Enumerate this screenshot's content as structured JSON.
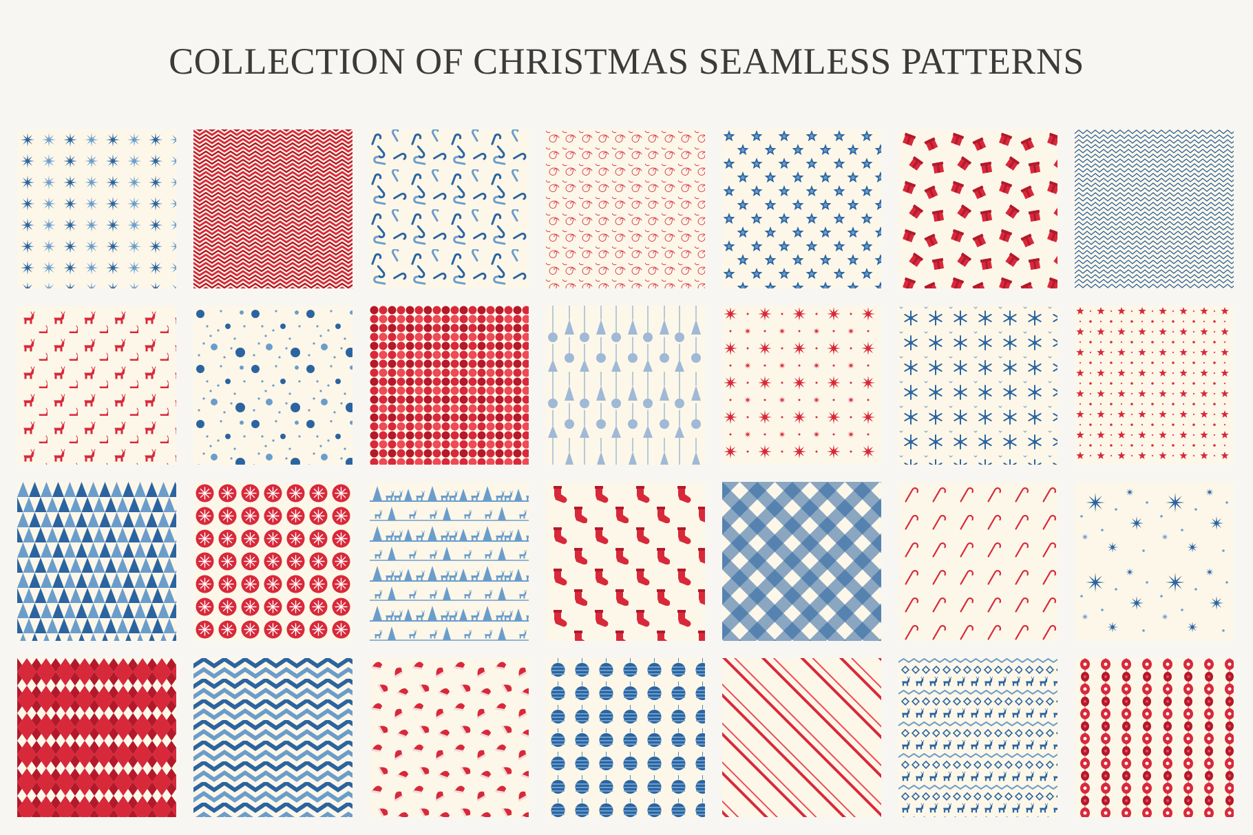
{
  "title": "COLLECTION OF CHRISTMAS SEAMLESS PATTERNS",
  "colors": {
    "background": "#f7f6f2",
    "cream": "#fdf7e9",
    "blue": "#2b64a0",
    "light_blue": "#6b9dcb",
    "red": "#d8293b",
    "dark_red": "#b3192b",
    "light_red": "#ee4a57"
  },
  "tiles": [
    {
      "pattern": "blue-eight-point-stars-pattern"
    },
    {
      "pattern": "red-herringbone-pattern"
    },
    {
      "pattern": "blue-candy-canes-pattern"
    },
    {
      "pattern": "red-swirls-pattern"
    },
    {
      "pattern": "blue-five-point-stars-pattern"
    },
    {
      "pattern": "red-gift-boxes-pattern"
    },
    {
      "pattern": "blue-zigzag-lines-pattern"
    },
    {
      "pattern": "red-reindeer-pattern"
    },
    {
      "pattern": "blue-snow-dots-pattern"
    },
    {
      "pattern": "red-polka-dots-pattern"
    },
    {
      "pattern": "blue-ornaments-trees-pattern"
    },
    {
      "pattern": "red-nordic-stars-pattern"
    },
    {
      "pattern": "blue-snowflakes-pattern"
    },
    {
      "pattern": "red-small-stars-pattern"
    },
    {
      "pattern": "blue-triangle-trees-pattern"
    },
    {
      "pattern": "red-snowflake-circles-pattern"
    },
    {
      "pattern": "blue-trees-reindeer-border-pattern"
    },
    {
      "pattern": "red-stockings-pattern"
    },
    {
      "pattern": "blue-gingham-pattern"
    },
    {
      "pattern": "red-candy-canes-pattern"
    },
    {
      "pattern": "blue-scattered-stars-pattern"
    },
    {
      "pattern": "red-harlequin-pattern"
    },
    {
      "pattern": "blue-chevron-pattern"
    },
    {
      "pattern": "red-santa-hats-pattern"
    },
    {
      "pattern": "blue-baubles-pattern"
    },
    {
      "pattern": "red-diagonal-stripes-pattern"
    },
    {
      "pattern": "blue-fair-isle-pattern"
    },
    {
      "pattern": "red-garland-pattern"
    }
  ]
}
